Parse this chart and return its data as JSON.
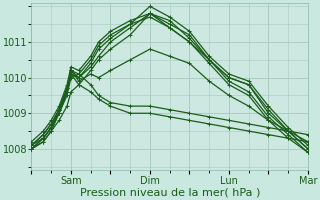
{
  "background_color": "#c8e8e0",
  "plot_bg_color": "#cce8e0",
  "grid_color": "#a8c8be",
  "line_color": "#1a5c1a",
  "marker": "+",
  "markersize": 3,
  "linewidth": 0.9,
  "xlabel": "Pression niveau de la mer( hPa )",
  "xlabel_fontsize": 8,
  "yticks": [
    1008,
    1009,
    1010,
    1011
  ],
  "ylim": [
    1007.4,
    1012.1
  ],
  "xlim": [
    0,
    7.0
  ],
  "xtick_labels": [
    "",
    "Sam",
    "",
    "Dim",
    "",
    "Lun",
    "",
    "Mar"
  ],
  "xtick_positions": [
    0,
    1,
    2,
    3,
    4,
    5,
    6,
    7
  ],
  "vlines": [
    1,
    3,
    5,
    7
  ],
  "series": [
    {
      "x": [
        0.0,
        0.3,
        0.5,
        0.7,
        0.9,
        1.0,
        1.2,
        1.5,
        1.7,
        2.0,
        2.5,
        3.0,
        3.5,
        4.0,
        4.5,
        5.0,
        5.5,
        6.0,
        6.5,
        7.0
      ],
      "y": [
        1008.0,
        1008.3,
        1008.6,
        1009.0,
        1009.5,
        1010.0,
        1010.1,
        1009.8,
        1009.5,
        1009.3,
        1009.2,
        1009.2,
        1009.1,
        1009.0,
        1008.9,
        1008.8,
        1008.7,
        1008.6,
        1008.5,
        1008.4
      ]
    },
    {
      "x": [
        0.0,
        0.3,
        0.5,
        0.7,
        0.9,
        1.0,
        1.2,
        1.5,
        1.7,
        2.0,
        2.5,
        3.0,
        3.5,
        4.0,
        4.5,
        5.0,
        5.5,
        6.0,
        6.5,
        7.0
      ],
      "y": [
        1008.0,
        1008.2,
        1008.5,
        1008.8,
        1009.2,
        1009.6,
        1009.8,
        1009.6,
        1009.4,
        1009.2,
        1009.0,
        1009.0,
        1008.9,
        1008.8,
        1008.7,
        1008.6,
        1008.5,
        1008.4,
        1008.3,
        1008.2
      ]
    },
    {
      "x": [
        0.0,
        0.3,
        0.5,
        0.7,
        0.9,
        1.0,
        1.2,
        1.5,
        1.7,
        2.0,
        2.5,
        3.0,
        3.5,
        4.0,
        4.5,
        5.0,
        5.5,
        6.0,
        6.5,
        7.0
      ],
      "y": [
        1008.1,
        1008.3,
        1008.6,
        1009.0,
        1009.6,
        1010.1,
        1009.8,
        1010.2,
        1010.5,
        1010.8,
        1011.2,
        1011.8,
        1011.5,
        1011.2,
        1010.5,
        1010.0,
        1009.8,
        1009.0,
        1008.5,
        1008.0
      ]
    },
    {
      "x": [
        0.0,
        0.3,
        0.5,
        0.7,
        0.9,
        1.0,
        1.2,
        1.5,
        1.7,
        2.0,
        2.5,
        3.0,
        3.5,
        4.0,
        4.5,
        5.0,
        5.5,
        6.0,
        6.5,
        7.0
      ],
      "y": [
        1008.1,
        1008.4,
        1008.7,
        1009.1,
        1009.7,
        1010.2,
        1010.0,
        1010.4,
        1010.8,
        1011.1,
        1011.5,
        1012.0,
        1011.7,
        1011.3,
        1010.6,
        1010.1,
        1009.9,
        1009.2,
        1008.6,
        1008.1
      ]
    },
    {
      "x": [
        0.0,
        0.3,
        0.5,
        0.7,
        0.9,
        1.0,
        1.2,
        1.5,
        1.7,
        2.0,
        2.5,
        3.0,
        3.5,
        4.0,
        4.5,
        5.0,
        5.5,
        6.0,
        6.5,
        7.0
      ],
      "y": [
        1008.0,
        1008.2,
        1008.5,
        1009.0,
        1009.6,
        1010.1,
        1010.0,
        1010.3,
        1010.6,
        1011.0,
        1011.4,
        1011.8,
        1011.6,
        1011.1,
        1010.5,
        1010.0,
        1009.8,
        1009.1,
        1008.5,
        1008.0
      ]
    },
    {
      "x": [
        0.0,
        0.3,
        0.5,
        0.7,
        0.9,
        1.0,
        1.2,
        1.5,
        1.7,
        2.0,
        2.5,
        3.0,
        3.5,
        4.0,
        4.5,
        5.0,
        5.5,
        6.0,
        6.5,
        7.0
      ],
      "y": [
        1008.0,
        1008.3,
        1008.6,
        1009.1,
        1009.7,
        1010.2,
        1010.1,
        1010.5,
        1010.9,
        1011.2,
        1011.5,
        1011.7,
        1011.4,
        1011.0,
        1010.5,
        1009.9,
        1009.6,
        1008.9,
        1008.4,
        1007.9
      ]
    },
    {
      "x": [
        0.0,
        0.3,
        0.5,
        0.7,
        0.9,
        1.0,
        1.2,
        1.5,
        1.7,
        2.0,
        2.5,
        3.0,
        3.5,
        4.0,
        4.5,
        5.0,
        5.5,
        6.0,
        6.5,
        7.0
      ],
      "y": [
        1008.2,
        1008.5,
        1008.8,
        1009.2,
        1009.8,
        1010.3,
        1010.2,
        1010.6,
        1011.0,
        1011.3,
        1011.6,
        1011.8,
        1011.4,
        1011.0,
        1010.4,
        1009.8,
        1009.5,
        1008.8,
        1008.3,
        1007.9
      ]
    },
    {
      "x": [
        0.0,
        0.3,
        0.5,
        0.7,
        0.9,
        1.0,
        1.2,
        1.5,
        1.7,
        2.0,
        2.5,
        3.0,
        3.5,
        4.0,
        4.5,
        5.0,
        5.5,
        6.0,
        6.5,
        7.0
      ],
      "y": [
        1008.1,
        1008.4,
        1008.7,
        1009.1,
        1009.7,
        1010.2,
        1009.9,
        1010.1,
        1010.0,
        1010.2,
        1010.5,
        1010.8,
        1010.6,
        1010.4,
        1009.9,
        1009.5,
        1009.2,
        1008.8,
        1008.5,
        1008.2
      ]
    }
  ]
}
